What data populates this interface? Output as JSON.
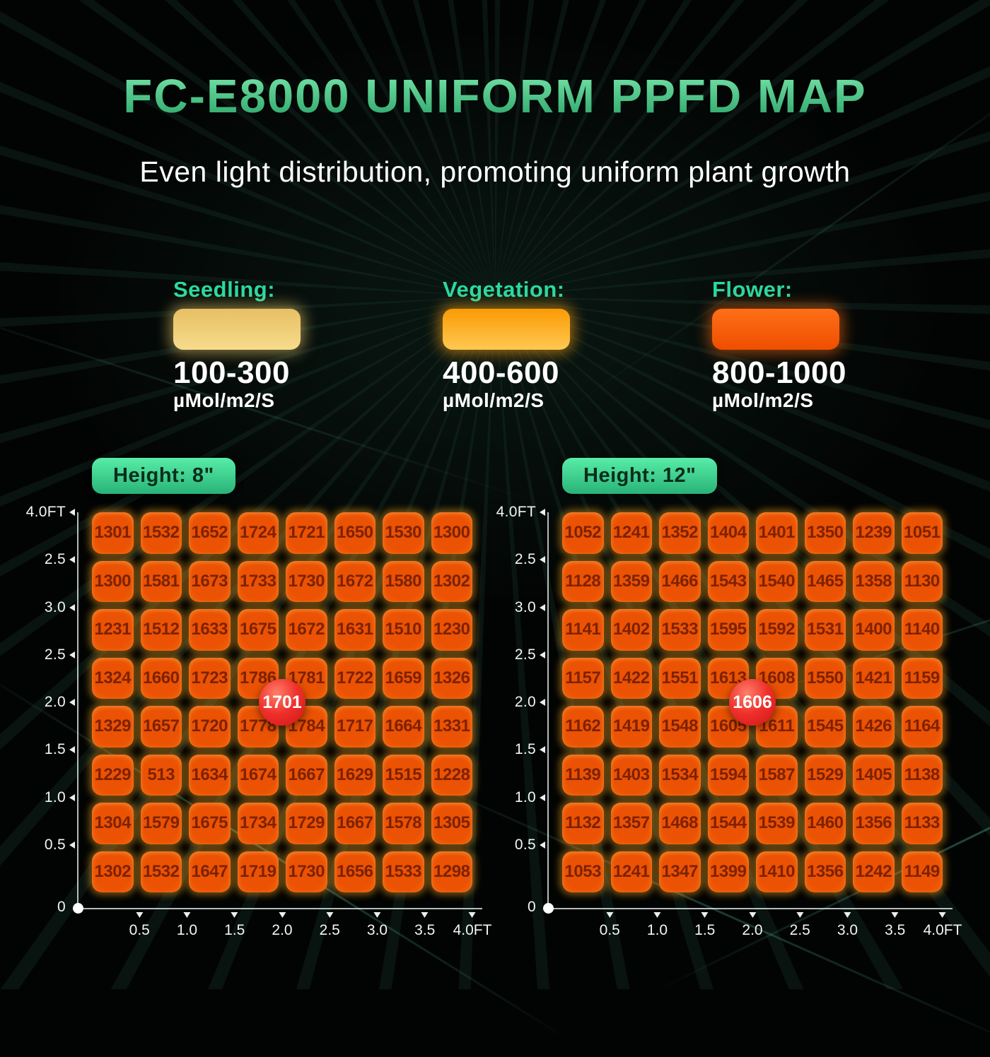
{
  "page": {
    "title": "FC-E8000 UNIFORM PPFD MAP",
    "subtitle": "Even light distribution, promoting uniform plant growth"
  },
  "colors": {
    "title_gradient_top": "#7be8ac",
    "title_gradient_bottom": "#27a065",
    "legend_label_green": "#2bd9a0",
    "height_badge_green_top": "#58eda8",
    "height_badge_green_bottom": "#29b377",
    "cell_orange_center": "#eb5204",
    "cell_orange_edge": "#ffc75e",
    "cell_text": "#7d2200",
    "center_badge_red": "#ef2f2a",
    "axis_white": "#f2f5f3"
  },
  "legend": {
    "items": [
      {
        "label": "Seedling:",
        "range": "100-300",
        "unit": "µMol/m2/S",
        "swatch_top": "#e8bf63",
        "swatch_bottom": "#f6dc8d",
        "glow": "rgba(242,210,110,0.55)"
      },
      {
        "label": "Vegetation:",
        "range": "400-600",
        "unit": "µMol/m2/S",
        "swatch_top": "#fb9a04",
        "swatch_bottom": "#ffc853",
        "glow": "rgba(255,165,20,0.60)"
      },
      {
        "label": "Flower:",
        "range": "800-1000",
        "unit": "µMol/m2/S",
        "swatch_top": "#ff6f17",
        "swatch_bottom": "#ee4e00",
        "glow": "rgba(255,110,20,0.55)"
      }
    ]
  },
  "chart_data": [
    {
      "type": "heatmap",
      "title": "Height: 8\"",
      "center_label": "1701",
      "unit": "µMol/m2/S",
      "x_ticks": [
        "0.5",
        "1.0",
        "1.5",
        "2.0",
        "2.5",
        "3.0",
        "3.5",
        "4.0FT"
      ],
      "y_ticks": [
        "4.0FT",
        "2.5",
        "3.0",
        "2.5",
        "2.0",
        "1.5",
        "1.0",
        "0.5",
        "0"
      ],
      "values": [
        [
          1301,
          1532,
          1652,
          1724,
          1721,
          1650,
          1530,
          1300
        ],
        [
          1300,
          1581,
          1673,
          1733,
          1730,
          1672,
          1580,
          1302
        ],
        [
          1231,
          1512,
          1633,
          1675,
          1672,
          1631,
          1510,
          1230
        ],
        [
          1324,
          1660,
          1723,
          1786,
          1781,
          1722,
          1659,
          1326
        ],
        [
          1329,
          1657,
          1720,
          1778,
          1784,
          1717,
          1664,
          1331
        ],
        [
          1229,
          513,
          1634,
          1674,
          1667,
          1629,
          1515,
          1228
        ],
        [
          1304,
          1579,
          1675,
          1734,
          1729,
          1667,
          1578,
          1305
        ],
        [
          1302,
          1532,
          1647,
          1719,
          1730,
          1656,
          1533,
          1298
        ]
      ]
    },
    {
      "type": "heatmap",
      "title": "Height: 12\"",
      "center_label": "1606",
      "unit": "µMol/m2/S",
      "x_ticks": [
        "0.5",
        "1.0",
        "1.5",
        "2.0",
        "2.5",
        "3.0",
        "3.5",
        "4.0FT"
      ],
      "y_ticks": [
        "4.0FT",
        "2.5",
        "3.0",
        "2.5",
        "2.0",
        "1.5",
        "1.0",
        "0.5",
        "0"
      ],
      "values": [
        [
          1052,
          1241,
          1352,
          1404,
          1401,
          1350,
          1239,
          1051
        ],
        [
          1128,
          1359,
          1466,
          1543,
          1540,
          1465,
          1358,
          1130
        ],
        [
          1141,
          1402,
          1533,
          1595,
          1592,
          1531,
          1400,
          1140
        ],
        [
          1157,
          1422,
          1551,
          1613,
          1608,
          1550,
          1421,
          1159
        ],
        [
          1162,
          1419,
          1548,
          1605,
          1611,
          1545,
          1426,
          1164
        ],
        [
          1139,
          1403,
          1534,
          1594,
          1587,
          1529,
          1405,
          1138
        ],
        [
          1132,
          1357,
          1468,
          1544,
          1539,
          1460,
          1356,
          1133
        ],
        [
          1053,
          1241,
          1347,
          1399,
          1410,
          1356,
          1242,
          1149
        ]
      ]
    }
  ]
}
